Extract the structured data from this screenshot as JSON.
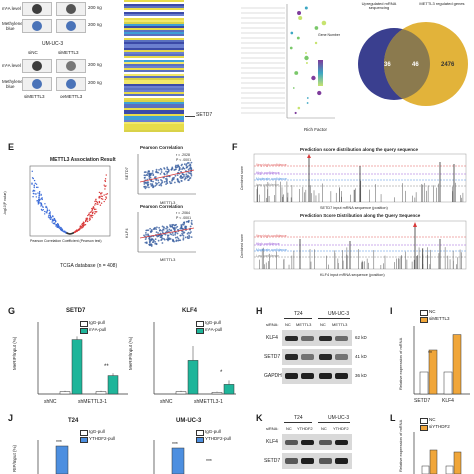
{
  "panel_a": {
    "m6a_label": "m⁶A level",
    "mb_label_1": "Methylene",
    "mb_label_2": "blue",
    "amount_top": "200 ng",
    "amount_bottom": "200 ng",
    "cell_line": "UM-UC-3",
    "lanes_top": [
      "siNC",
      "siMETTL3"
    ],
    "row2_label": "m⁶A level",
    "row3_label_1": "Methylene",
    "row3_label_2": "blue",
    "amount_2a": "200 ng",
    "amount_2b": "200 ng",
    "bottom_left": "siMETTL3",
    "bottom_right": "oeMETTL3"
  },
  "panel_b": {
    "gene_label": "SETD7"
  },
  "panel_c": {
    "legend_title": "Gene Number",
    "x_label": "Rich Factor"
  },
  "panel_d": {
    "label_left": "Upregulated mRNA sequencing",
    "label_right": "METTL3 regulated genes",
    "left_count": "36",
    "overlap_count": "46",
    "right_count": "2476",
    "colors": {
      "left": "#3a3f8f",
      "right": "#e2b33a",
      "overlap": "#7a6a5a"
    }
  },
  "panel_e": {
    "letter": "E",
    "title": "METTL3 Association Result",
    "volcano_xlabel": "Pearson Correlation Coefficient (Pearson test)",
    "volcano_ylabel": "-log10(P value)",
    "footer": "TCGA database (n = 408)",
    "scatter1": {
      "title": "Pearson Correlation",
      "r": "r = .2028",
      "p": "P < .0001",
      "ylabel": "SETD7"
    },
    "scatter2": {
      "title": "Pearson Correlation",
      "r": "r = .2064",
      "p": "P < .0001",
      "ylabel": "KLF4"
    },
    "scatter_xlabel": "METTL3"
  },
  "panel_f": {
    "letter": "F",
    "top_title": "Prediction score distribution along the query sequence",
    "top_xlabel": "SETD7 input mRNA sequence (position)",
    "bottom_title": "Prediction Score Distribution along the Query Sequence",
    "bottom_xlabel": "KLF4 input mRNA sequence (position)",
    "conf_very_high": "Very high confidence",
    "conf_high": "High confidence",
    "conf_moderate": "Moderate confidence",
    "conf_low": "Low confidence",
    "ylabel": "Combined score"
  },
  "panel_g": {
    "letter": "G",
    "left_title": "SETD7",
    "right_title": "KLF4",
    "ylabel": "MeRIP/Input (%)",
    "legend": [
      "IgG-pull",
      "m⁶A-pull"
    ],
    "categories": [
      "shNC",
      "shMETTL3-1"
    ],
    "sig": "**",
    "sig_right": "*"
  },
  "panel_h": {
    "letter": "H",
    "cell1": "T24",
    "cell2": "UM-UC-3",
    "row_label": "siRNA:",
    "lanes": [
      "NC",
      "METTL3",
      "NC",
      "METTL3"
    ],
    "proteins": [
      "KLF4",
      "SETD7",
      "GAPDH"
    ],
    "sizes": [
      "62 kD",
      "41 kD",
      "36 kD"
    ]
  },
  "panel_i": {
    "letter": "I",
    "legend": [
      "NC",
      "siMETTL3"
    ],
    "ylabel": "Relative expression of mRNA",
    "categories": [
      "SETD7",
      "KLF4"
    ],
    "sig": "**"
  },
  "panel_j": {
    "letter": "J",
    "left_title": "T24",
    "right_title": "UM-UC-3",
    "legend": [
      "IgG-pull",
      "YTHDF2-pull"
    ],
    "ylabel": "RIP/Input (%)",
    "sig": "***"
  },
  "panel_k": {
    "letter": "K",
    "cell1": "T24",
    "cell2": "UM-UC-3",
    "row_label": "siRNA:",
    "lanes": [
      "NC",
      "YTHDF2",
      "NC",
      "YTHDF2"
    ],
    "proteins": [
      "KLF4",
      "SETD7"
    ]
  },
  "panel_l": {
    "letter": "L",
    "legend": [
      "NC",
      "siYTHDF2"
    ],
    "ylabel": "Relative expression of mRNA"
  },
  "colors": {
    "teal": "#1fb59a",
    "white_bar": "#ffffff",
    "orange": "#f0a63a",
    "blue": "#4d8fe0",
    "volcano_red": "#d83a3a",
    "scatter_blue": "#3a5fa0"
  }
}
